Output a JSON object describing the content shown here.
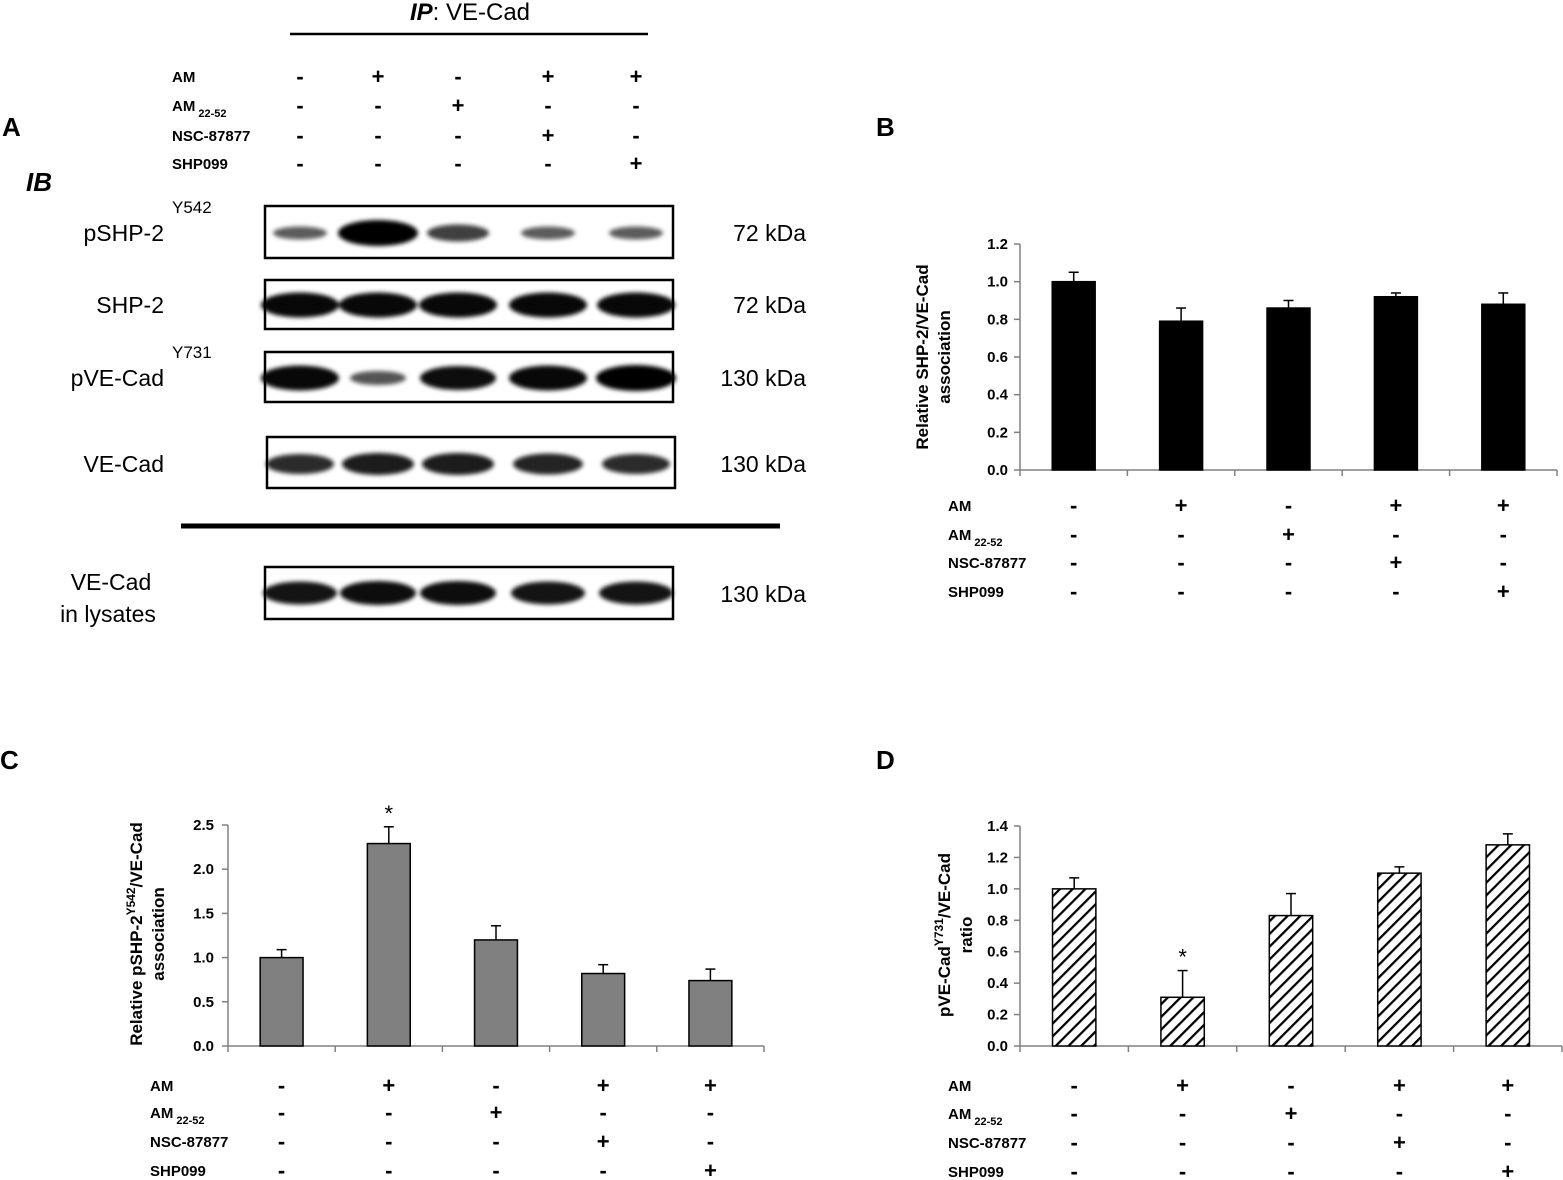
{
  "panel_letters": [
    "A",
    "B",
    "C",
    "D"
  ],
  "conditions": [
    {
      "label": "AM",
      "sub": "",
      "signs": [
        "-",
        "+",
        "-",
        "+",
        "+"
      ]
    },
    {
      "label": "AM",
      "sub": "22-52",
      "signs": [
        "-",
        "-",
        "+",
        "-",
        "-"
      ]
    },
    {
      "label": "NSC-87877",
      "sub": "",
      "signs": [
        "-",
        "-",
        "-",
        "+",
        "-"
      ]
    },
    {
      "label": "SHP099",
      "sub": "",
      "signs": [
        "-",
        "-",
        "-",
        "-",
        "+"
      ]
    }
  ],
  "panel_a": {
    "ip_label_bold": "IP",
    "ip_label_rest": ": VE-Cad",
    "ib_label": "IB",
    "blots": [
      {
        "label": "pSHP-2",
        "sup": "Y542",
        "kda": "72 kDa",
        "intensity": [
          0.35,
          1.0,
          0.55,
          0.35,
          0.35
        ]
      },
      {
        "label": "SHP-2",
        "sup": "",
        "kda": "72 kDa",
        "intensity": [
          0.95,
          0.95,
          0.95,
          0.95,
          0.95
        ]
      },
      {
        "label": "pVE-Cad",
        "sup": "Y731",
        "kda": "130 kDa",
        "intensity": [
          0.95,
          0.4,
          0.9,
          0.95,
          1.0
        ]
      },
      {
        "label": "VE-Cad",
        "sup": "",
        "kda": "130 kDa",
        "intensity": [
          0.7,
          0.8,
          0.8,
          0.75,
          0.7
        ]
      }
    ],
    "lysate_blot": {
      "label_line1": "VE-Cad",
      "label_line2": "in lysates",
      "kda": "130 kDa",
      "intensity": [
        0.85,
        0.9,
        0.9,
        0.85,
        0.85
      ]
    }
  },
  "chart_data": [
    {
      "panel": "B",
      "type": "bar",
      "ylabel_line1": "Relative SHP-2/VE-Cad",
      "ylabel_line2": "association",
      "ylim": [
        0,
        1.2
      ],
      "yticks": [
        "0.0",
        "0.2",
        "0.4",
        "0.6",
        "0.8",
        "1.0",
        "1.2"
      ],
      "values": [
        1.0,
        0.79,
        0.86,
        0.92,
        0.88
      ],
      "errors": [
        0.05,
        0.07,
        0.04,
        0.02,
        0.06
      ],
      "significant": [
        false,
        false,
        false,
        false,
        false
      ],
      "bar_color": "#000000",
      "fill": "solid"
    },
    {
      "panel": "C",
      "type": "bar",
      "ylabel_line1_pre": "Relative pSHP-2",
      "ylabel_line1_sup": "Y542",
      "ylabel_line1_post": "/VE-Cad",
      "ylabel_line2": "association",
      "ylim": [
        0,
        2.5
      ],
      "yticks": [
        "0.0",
        "0.5",
        "1.0",
        "1.5",
        "2.0",
        "2.5"
      ],
      "values": [
        1.0,
        2.29,
        1.2,
        0.82,
        0.74
      ],
      "errors": [
        0.09,
        0.19,
        0.16,
        0.1,
        0.13
      ],
      "significant": [
        false,
        true,
        false,
        false,
        false
      ],
      "significance_mark": "*",
      "bar_color": "#808080",
      "fill": "solid"
    },
    {
      "panel": "D",
      "type": "bar",
      "ylabel_line1_pre": "pVE-Cad",
      "ylabel_line1_sup": "Y731",
      "ylabel_line1_post": "/VE-Cad",
      "ylabel_line2": "ratio",
      "ylim": [
        0,
        1.4
      ],
      "yticks": [
        "0.0",
        "0.2",
        "0.4",
        "0.6",
        "0.8",
        "1.0",
        "1.2",
        "1.4"
      ],
      "values": [
        1.0,
        0.31,
        0.83,
        1.1,
        1.28
      ],
      "errors": [
        0.07,
        0.17,
        0.14,
        0.04,
        0.07
      ],
      "significant": [
        false,
        true,
        false,
        false,
        false
      ],
      "significance_mark": "*",
      "bar_color": "#000000",
      "fill": "hatched"
    }
  ]
}
